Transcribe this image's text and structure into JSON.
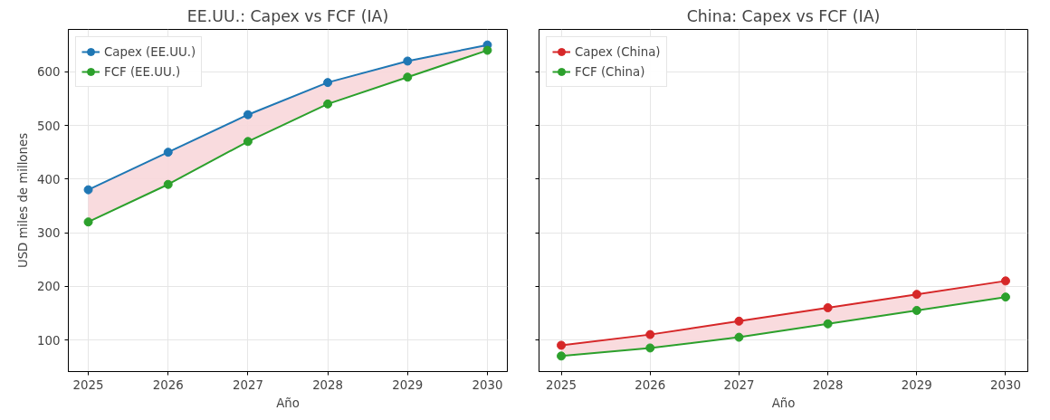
{
  "chart_data": [
    {
      "type": "line",
      "title": "EE.UU.: Capex vs FCF (IA)",
      "xlabel": "Año",
      "ylabel": "USD miles de millones",
      "x": [
        2025,
        2026,
        2027,
        2028,
        2029,
        2030
      ],
      "xlim": [
        2024.75,
        2030.25
      ],
      "xticks": [
        2025,
        2026,
        2027,
        2028,
        2029,
        2030
      ],
      "ylim": [
        41,
        679
      ],
      "yticks": [
        100,
        200,
        300,
        400,
        500,
        600
      ],
      "grid": true,
      "legend": "top left",
      "marker": "circle",
      "line_style": "solid",
      "series": [
        {
          "name": "Capex (EE.UU.)",
          "color": "#1f77b4",
          "values": [
            380,
            450,
            520,
            580,
            620,
            650
          ],
          "lower": [
            320,
            390,
            470,
            540,
            590,
            640
          ],
          "upper": [
            380,
            450,
            520,
            580,
            620,
            650
          ]
        },
        {
          "name": "FCF (EE.UU.)",
          "color": "#2ca02c",
          "values": [
            320,
            390,
            470,
            540,
            590,
            640
          ]
        }
      ]
    },
    {
      "type": "line",
      "title": "China: Capex vs FCF (IA)",
      "xlabel": "Año",
      "x": [
        2025,
        2026,
        2027,
        2028,
        2029,
        2030
      ],
      "xlim": [
        2024.75,
        2030.25
      ],
      "xticks": [
        2025,
        2026,
        2027,
        2028,
        2029,
        2030
      ],
      "ylim": [
        41,
        679
      ],
      "yticks": [
        100,
        200,
        300,
        400,
        500,
        600
      ],
      "tick_labels": "x",
      "grid": true,
      "legend": "top left",
      "marker": "circle",
      "line_style": "solid",
      "series": [
        {
          "name": "Capex (China)",
          "color": "#d62728",
          "values": [
            90,
            110,
            135,
            160,
            185,
            210
          ],
          "lower": [
            70,
            85,
            105,
            130,
            155,
            180
          ],
          "upper": [
            90,
            110,
            135,
            160,
            185,
            210
          ]
        },
        {
          "name": "FCF (China)",
          "color": "#2ca02c",
          "values": [
            70,
            85,
            105,
            130,
            155,
            180
          ]
        }
      ]
    }
  ]
}
